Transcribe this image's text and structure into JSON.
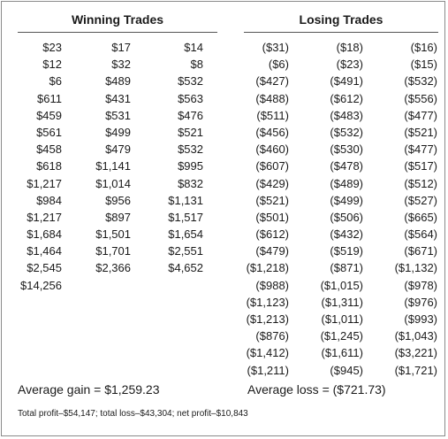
{
  "headers": {
    "winning": "Winning Trades",
    "losing": "Losing Trades"
  },
  "winning_columns": [
    [
      "$23",
      "$12",
      "$6",
      "$611",
      "$459",
      "$561",
      "$458",
      "$618",
      "$1,217",
      "$984",
      "$1,217",
      "$1,684",
      "$1,464",
      "$2,545",
      "$14,256"
    ],
    [
      "$17",
      "$32",
      "$489",
      "$431",
      "$531",
      "$499",
      "$479",
      "$1,141",
      "$1,014",
      "$956",
      "$897",
      "$1,501",
      "$1,701",
      "$2,366"
    ],
    [
      "$14",
      "$8",
      "$532",
      "$563",
      "$476",
      "$521",
      "$532",
      "$995",
      "$832",
      "$1,131",
      "$1,517",
      "$1,654",
      "$2,551",
      "$4,652"
    ]
  ],
  "losing_columns": [
    [
      "($31)",
      "($6)",
      "($427)",
      "($488)",
      "($511)",
      "($456)",
      "($460)",
      "($607)",
      "($429)",
      "($521)",
      "($501)",
      "($612)",
      "($479)",
      "($1,218)",
      "($988)",
      "($1,123)",
      "($1,213)",
      "($876)",
      "($1,412)",
      "($1,211)"
    ],
    [
      "($18)",
      "($23)",
      "($491)",
      "($612)",
      "($483)",
      "($532)",
      "($530)",
      "($478)",
      "($489)",
      "($499)",
      "($506)",
      "($432)",
      "($519)",
      "($871)",
      "($1,015)",
      "($1,311)",
      "($1,011)",
      "($1,245)",
      "($1,611)",
      "($945)"
    ],
    [
      "($16)",
      "($15)",
      "($532)",
      "($556)",
      "($477)",
      "($521)",
      "($477)",
      "($517)",
      "($512)",
      "($527)",
      "($665)",
      "($564)",
      "($671)",
      "($1,132)",
      "($978)",
      "($976)",
      "($993)",
      "($1,043)",
      "($3,221)",
      "($1,721)"
    ]
  ],
  "summary": {
    "average_gain": "Average gain = $1,259.23",
    "average_loss": "Average loss = ($721.73)"
  },
  "footnote": "Total profit–$54,147; total loss–$43,304; net profit–$10,843"
}
